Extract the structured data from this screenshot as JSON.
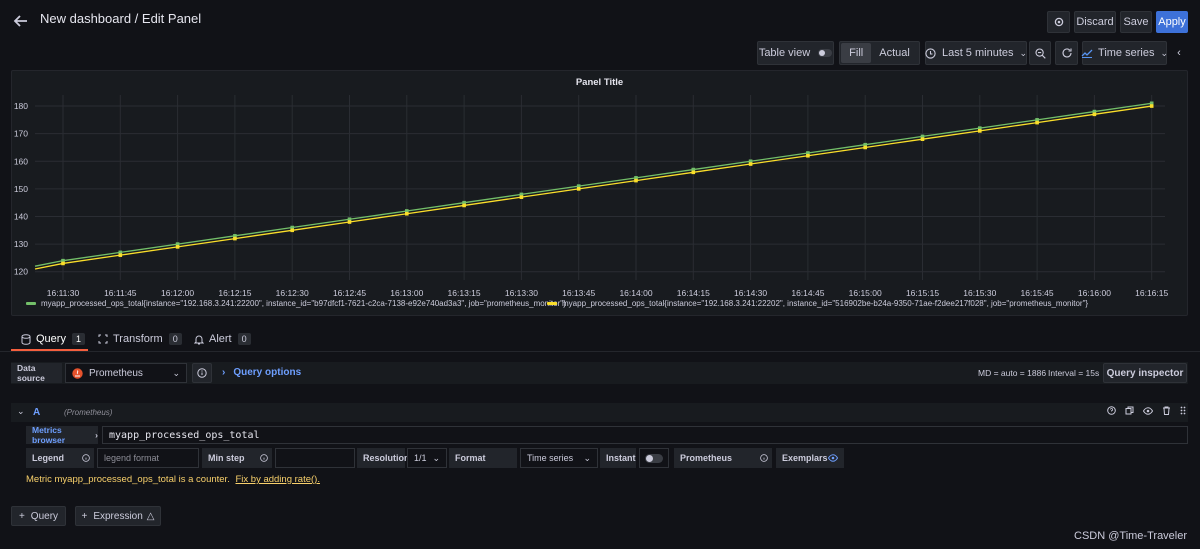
{
  "header": {
    "title": "New dashboard / Edit Panel",
    "discard_label": "Discard",
    "save_label": "Save",
    "apply_label": "Apply"
  },
  "toolbar": {
    "table_view_label": "Table view",
    "fill_label": "Fill",
    "actual_label": "Actual",
    "time_range_label": "Last 5 minutes",
    "viz_label": "Time series"
  },
  "panel": {
    "title": "Panel Title"
  },
  "chart_data": {
    "type": "line",
    "title": "Panel Title",
    "x": [
      "16:11:30",
      "16:11:45",
      "16:12:00",
      "16:12:15",
      "16:12:30",
      "16:12:45",
      "16:13:00",
      "16:13:15",
      "16:13:30",
      "16:13:45",
      "16:14:00",
      "16:14:15",
      "16:14:30",
      "16:14:45",
      "16:15:00",
      "16:15:15",
      "16:15:30",
      "16:15:45",
      "16:16:00",
      "16:16:15"
    ],
    "y_ticks": [
      120,
      130,
      140,
      150,
      160,
      170,
      180
    ],
    "ylim": [
      117,
      184
    ],
    "grid": true,
    "legend_position": "bottom-left",
    "series": [
      {
        "name": "myapp_processed_ops_total{instance=\"192.168.3.241:22200\", instance_id=\"b97dfcf1-7621-c2ca-7138-e92e740ad3a3\", job=\"prometheus_monitor\"}",
        "color": "#73bf69",
        "start": 122,
        "end": 181,
        "values": [
          124,
          127,
          130,
          133,
          136,
          139,
          142,
          145,
          148,
          151,
          154,
          157,
          160,
          163,
          166,
          169,
          172,
          175,
          178,
          181
        ]
      },
      {
        "name": "myapp_processed_ops_total{instance=\"192.168.3.241:22202\", instance_id=\"516902be-b24a-9350-71ae-f2dee217f028\", job=\"prometheus_monitor\"}",
        "color": "#fade2a",
        "start": 121,
        "end": 180,
        "values": [
          123,
          126,
          129,
          132,
          135,
          138,
          141,
          144,
          147,
          150,
          153,
          156,
          159,
          162,
          165,
          168,
          171,
          174,
          177,
          180
        ]
      }
    ]
  },
  "tabs": [
    {
      "label": "Query",
      "count": "1"
    },
    {
      "label": "Transform",
      "count": "0"
    },
    {
      "label": "Alert",
      "count": "0"
    }
  ],
  "query_bar": {
    "datasource_label": "Data source",
    "datasource_value": "Prometheus",
    "query_options_label": "Query options",
    "md_info": "MD = auto = 1886",
    "interval_info": "Interval = 15s",
    "inspector_label": "Query inspector"
  },
  "query": {
    "ref_id": "A",
    "datasource_hint": "(Prometheus)",
    "metrics_browser_label": "Metrics browser",
    "expression": "myapp_processed_ops_total",
    "legend_label": "Legend",
    "legend_placeholder": "legend format",
    "min_step_label": "Min step",
    "resolution_label": "Resolution",
    "resolution_value": "1/1",
    "format_label": "Format",
    "format_value": "Time series",
    "instant_label": "Instant",
    "prometheus_label": "Prometheus",
    "exemplars_label": "Exemplars",
    "warning_text": "Metric myapp_processed_ops_total is a counter.",
    "fix_link": "Fix by adding rate()."
  },
  "footer": {
    "add_query_label": "Query",
    "add_expression_label": "Expression"
  },
  "watermark": "CSDN @Time-Traveler"
}
